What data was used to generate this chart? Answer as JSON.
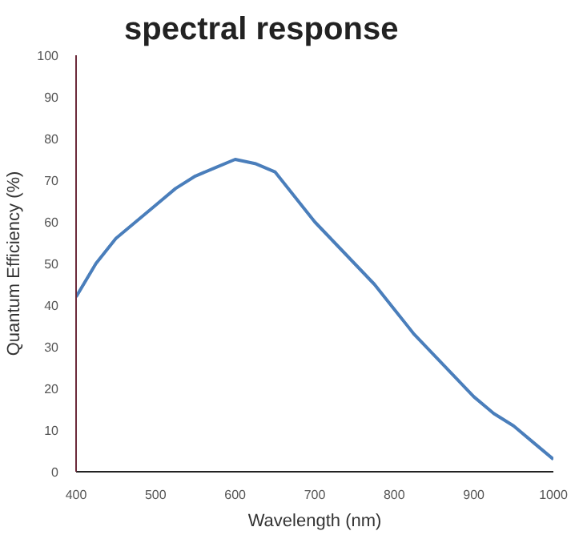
{
  "chart_data": {
    "type": "line",
    "title": "spectral response",
    "xlabel": "Wavelength (nm)",
    "ylabel": "Quantum Efficiency (%)",
    "x": [
      400,
      425,
      450,
      475,
      500,
      525,
      550,
      575,
      600,
      625,
      650,
      675,
      700,
      725,
      750,
      775,
      800,
      825,
      850,
      875,
      900,
      925,
      950,
      975,
      1000
    ],
    "series": [
      {
        "color": "#4a7ebb",
        "values": [
          42,
          50,
          56,
          60,
          64,
          68,
          71,
          73,
          75,
          74,
          72,
          66,
          60,
          55,
          50,
          45,
          39,
          33,
          28,
          23,
          18,
          14,
          11,
          7,
          3
        ]
      }
    ],
    "xlim": [
      400,
      1000
    ],
    "ylim": [
      0,
      100
    ],
    "xticks": [
      400,
      500,
      600,
      700,
      800,
      900,
      1000
    ],
    "yticks": [
      0,
      10,
      20,
      30,
      40,
      50,
      60,
      70,
      80,
      90,
      100
    ],
    "grid": false,
    "marker": "none",
    "line_style": "solid"
  }
}
